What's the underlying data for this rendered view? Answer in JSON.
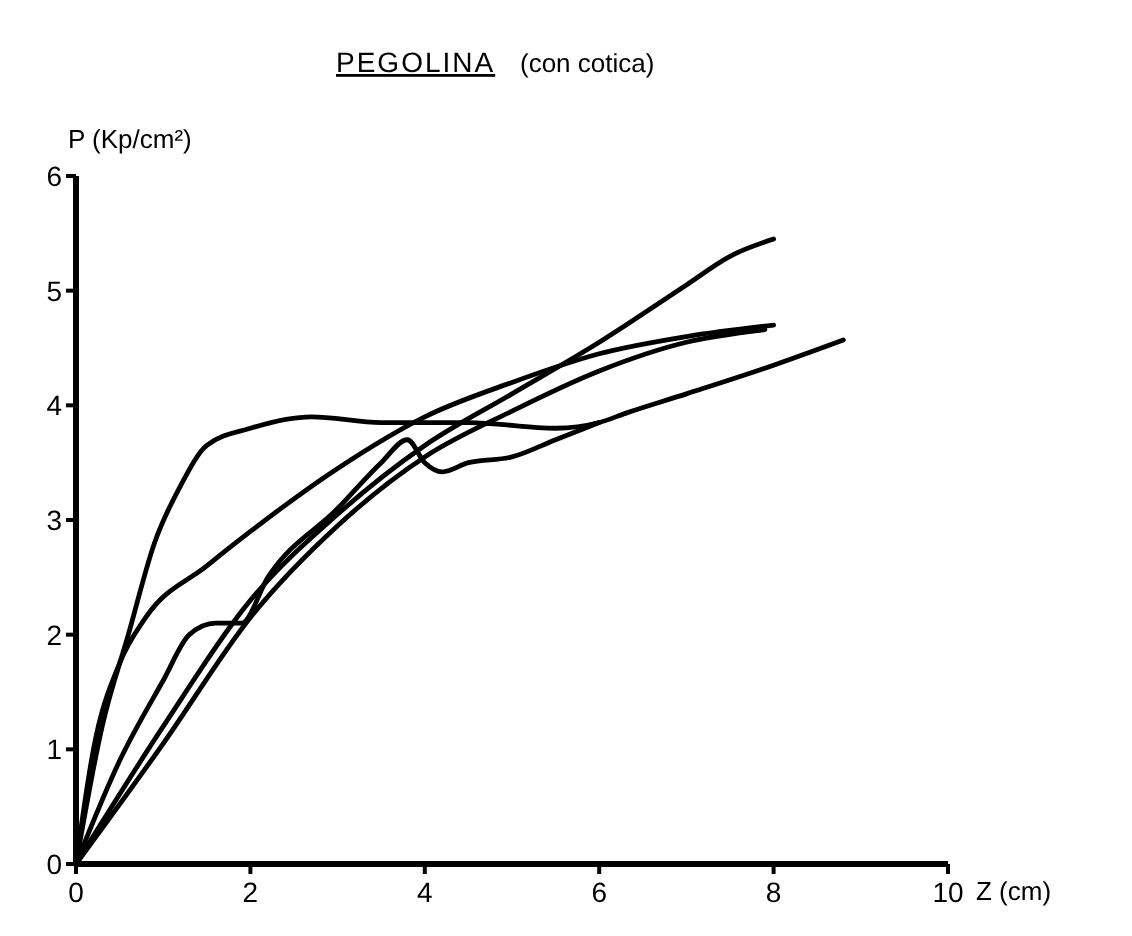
{
  "chart_data": {
    "type": "line",
    "title": "PEGOLINA",
    "subtitle": "(con cotica)",
    "xlabel": "Z (cm)",
    "ylabel": "P (Kp/cm²)",
    "xlim": [
      0,
      10
    ],
    "ylim": [
      0,
      6
    ],
    "xticks": [
      0,
      2,
      4,
      6,
      8,
      10
    ],
    "yticks": [
      0,
      1,
      2,
      3,
      4,
      5,
      6
    ],
    "marker": "none",
    "line_style": "solid",
    "series": [
      {
        "color": "#000000",
        "x": [
          0,
          0.3,
          0.6,
          0.9,
          1.2,
          1.5,
          2,
          2.7,
          3.5,
          4.5,
          5.5,
          6,
          6.3,
          7,
          8,
          8.8
        ],
        "values": [
          0,
          1.2,
          2.0,
          2.8,
          3.3,
          3.65,
          3.8,
          3.9,
          3.85,
          3.85,
          3.8,
          3.85,
          3.93,
          4.1,
          4.35,
          4.57
        ]
      },
      {
        "color": "#000000",
        "x": [
          0,
          0.2,
          0.5,
          0.8,
          1.5,
          2,
          3,
          4,
          5,
          6,
          7,
          8
        ],
        "values": [
          0,
          1.0,
          1.75,
          2.15,
          2.6,
          2.9,
          3.45,
          3.9,
          4.2,
          4.45,
          4.6,
          4.7
        ]
      },
      {
        "color": "#000000",
        "x": [
          0,
          0.5,
          1,
          1.3,
          1.6,
          1.9,
          2.2,
          3,
          3.5,
          3.8,
          4,
          4.2,
          4.5,
          5,
          5.5,
          6
        ],
        "values": [
          0,
          0.9,
          1.6,
          2.0,
          2.1,
          2.1,
          2.5,
          3.1,
          3.5,
          3.7,
          3.5,
          3.42,
          3.5,
          3.55,
          3.7,
          3.85
        ]
      },
      {
        "color": "#000000",
        "x": [
          0,
          1,
          2,
          3,
          4,
          5,
          6,
          7,
          7.5,
          8
        ],
        "values": [
          0,
          1.2,
          2.3,
          3.05,
          3.65,
          4.1,
          4.55,
          5.05,
          5.3,
          5.45
        ]
      },
      {
        "color": "#000000",
        "x": [
          0,
          1,
          2,
          3,
          4,
          5,
          6,
          7,
          7.9
        ],
        "values": [
          0,
          1.05,
          2.15,
          2.95,
          3.55,
          3.95,
          4.3,
          4.55,
          4.66
        ]
      }
    ]
  }
}
